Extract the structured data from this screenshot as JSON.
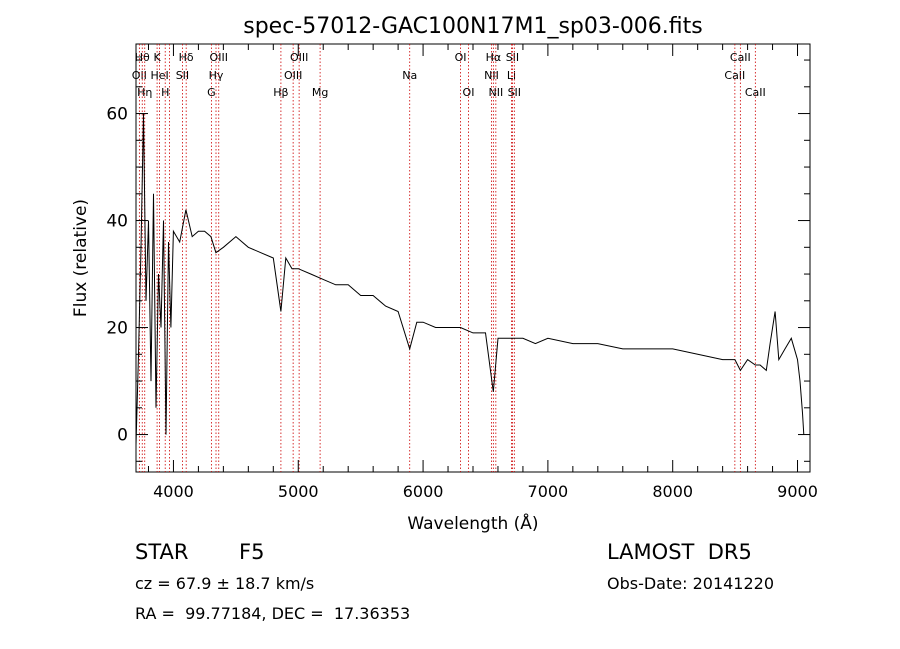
{
  "chart_data": {
    "type": "line",
    "title": "spec-57012-GAC100N17M1_sp03-006.fits",
    "xlabel": "Wavelength (Å)",
    "ylabel": "Flux (relative)",
    "xlim": [
      3700,
      9100
    ],
    "ylim": [
      -7,
      73
    ],
    "xticks": [
      4000,
      5000,
      6000,
      7000,
      8000,
      9000
    ],
    "yticks": [
      0,
      20,
      40,
      60
    ],
    "grid": false,
    "line_color": "#000000",
    "marker_color": "#cc0000",
    "series": [
      {
        "x": [
          3700,
          3720,
          3740,
          3760,
          3780,
          3800,
          3820,
          3840,
          3860,
          3880,
          3900,
          3920,
          3940,
          3960,
          3980,
          4000,
          4050,
          4100,
          4150,
          4200,
          4250,
          4300,
          4340,
          4400,
          4500,
          4600,
          4700,
          4800,
          4861,
          4900,
          4950,
          5000,
          5100,
          5200,
          5300,
          5400,
          5500,
          5600,
          5700,
          5800,
          5893,
          5950,
          6000,
          6100,
          6200,
          6300,
          6400,
          6500,
          6563,
          6600,
          6700,
          6800,
          6900,
          7000,
          7200,
          7400,
          7600,
          7800,
          8000,
          8200,
          8400,
          8498,
          8542,
          8600,
          8662,
          8700,
          8750,
          8780,
          8820,
          8850,
          8900,
          8950,
          9000,
          9020,
          9040,
          9050
        ],
        "y": [
          -2,
          15,
          35,
          60,
          25,
          40,
          10,
          45,
          5,
          30,
          20,
          40,
          0,
          36,
          20,
          38,
          36,
          42,
          37,
          38,
          38,
          37,
          34,
          35,
          37,
          35,
          34,
          33,
          23,
          33,
          31,
          31,
          30,
          29,
          28,
          28,
          26,
          26,
          24,
          23,
          16,
          21,
          21,
          20,
          20,
          20,
          19,
          19,
          8,
          18,
          18,
          18,
          17,
          18,
          17,
          17,
          16,
          16,
          16,
          15,
          14,
          14,
          12,
          14,
          13,
          13,
          12,
          17,
          23,
          14,
          16,
          18,
          14,
          10,
          4,
          0
        ]
      }
    ],
    "line_markers": [
      {
        "wl": 3727,
        "label": "OII",
        "row": 1
      },
      {
        "wl": 3750,
        "label": "Hθ",
        "row": 0
      },
      {
        "wl": 3770,
        "label": "Hη",
        "row": 2
      },
      {
        "wl": 3869,
        "label": "K",
        "row": 0
      },
      {
        "wl": 3889,
        "label": "HeI",
        "row": 1
      },
      {
        "wl": 3934,
        "label": "H",
        "row": 2
      },
      {
        "wl": 3968,
        "label": "",
        "row": 0
      },
      {
        "wl": 4072,
        "label": "SII",
        "row": 1
      },
      {
        "wl": 4102,
        "label": "Hδ",
        "row": 0
      },
      {
        "wl": 4304,
        "label": "G",
        "row": 2
      },
      {
        "wl": 4341,
        "label": "Hγ",
        "row": 1
      },
      {
        "wl": 4363,
        "label": "OIII",
        "row": 0
      },
      {
        "wl": 4861,
        "label": "Hβ",
        "row": 2
      },
      {
        "wl": 4959,
        "label": "OIII",
        "row": 1
      },
      {
        "wl": 5007,
        "label": "OIII",
        "row": 0
      },
      {
        "wl": 5175,
        "label": "Mg",
        "row": 2
      },
      {
        "wl": 5893,
        "label": "Na",
        "row": 1
      },
      {
        "wl": 6300,
        "label": "OI",
        "row": 0
      },
      {
        "wl": 6364,
        "label": "OI",
        "row": 2
      },
      {
        "wl": 6548,
        "label": "NII",
        "row": 1
      },
      {
        "wl": 6563,
        "label": "Hα",
        "row": 0
      },
      {
        "wl": 6583,
        "label": "NII",
        "row": 2
      },
      {
        "wl": 6708,
        "label": "Li",
        "row": 1
      },
      {
        "wl": 6716,
        "label": "SII",
        "row": 0
      },
      {
        "wl": 6731,
        "label": "SII",
        "row": 2
      },
      {
        "wl": 8498,
        "label": "CaII",
        "row": 1
      },
      {
        "wl": 8542,
        "label": "CaII",
        "row": 0
      },
      {
        "wl": 8662,
        "label": "CaII",
        "row": 2
      }
    ]
  },
  "info": {
    "object_class": "STAR",
    "subclass": "F5",
    "survey": "LAMOST  DR5",
    "cz": "cz = 67.9 ± 18.7 km/s",
    "obs_date": "Obs-Date: 20141220",
    "coords": "RA =  99.77184, DEC =  17.36353"
  }
}
